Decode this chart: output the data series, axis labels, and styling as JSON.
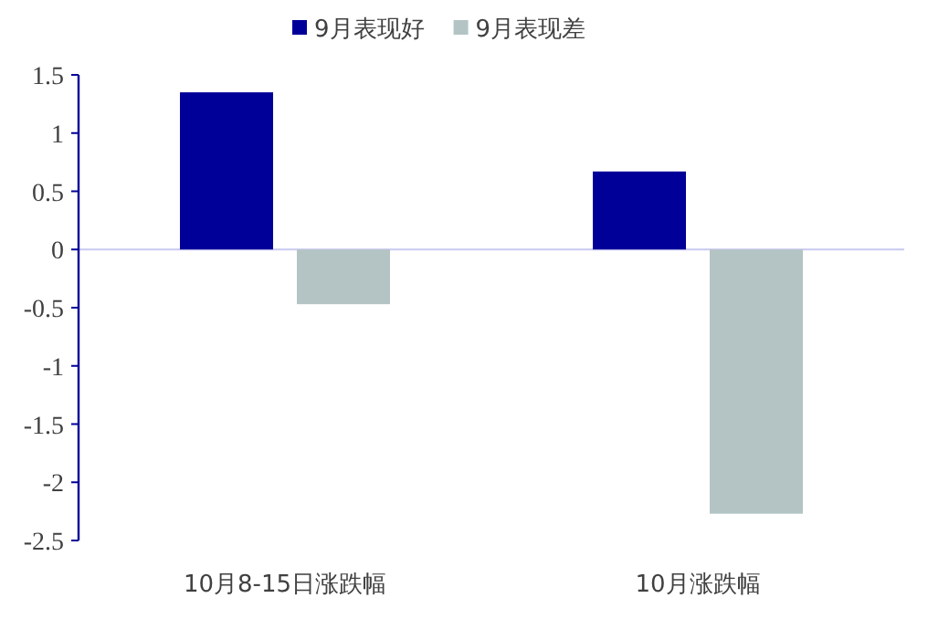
{
  "chart_data": {
    "type": "bar",
    "categories": [
      "10月8-15日涨跌幅",
      "10月涨跌幅"
    ],
    "series": [
      {
        "name": "9月表现好",
        "color": "#000099",
        "values": [
          1.35,
          0.67
        ]
      },
      {
        "name": "9月表现差",
        "color": "#b4c4c4",
        "values": [
          -0.47,
          -2.27
        ]
      }
    ],
    "ylim": [
      -2.5,
      1.5
    ],
    "yticks": [
      -2.5,
      -2,
      -1.5,
      -1,
      -0.5,
      0,
      0.5,
      1,
      1.5
    ],
    "ref_lines": [
      {
        "axis": "y",
        "value": 0,
        "color": "#c8c8f0"
      }
    ],
    "legend": "top"
  }
}
